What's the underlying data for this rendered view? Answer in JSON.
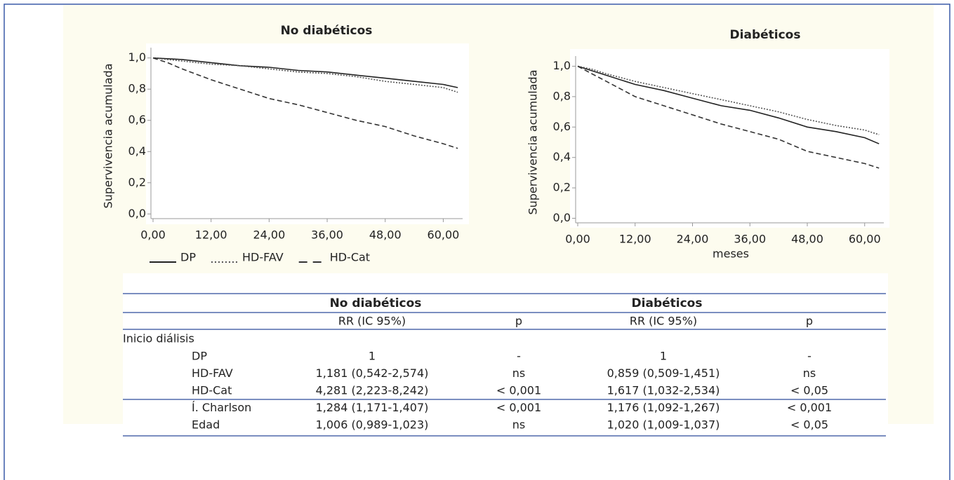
{
  "chart_data": [
    {
      "type": "line",
      "title": "No diabéticos",
      "ylabel": "Supervivencia acumulada",
      "x": [
        0,
        3,
        6,
        12,
        18,
        24,
        30,
        36,
        42,
        48,
        54,
        60,
        63
      ],
      "series": [
        {
          "name": "DP",
          "color": "#222222",
          "dash": "solid",
          "values": [
            1.0,
            0.995,
            0.99,
            0.97,
            0.95,
            0.94,
            0.92,
            0.91,
            0.89,
            0.87,
            0.85,
            0.83,
            0.81
          ]
        },
        {
          "name": "HD-FAV",
          "color": "#555555",
          "dash": "dotted",
          "values": [
            1.0,
            0.99,
            0.98,
            0.96,
            0.95,
            0.93,
            0.91,
            0.9,
            0.88,
            0.85,
            0.83,
            0.81,
            0.78
          ]
        },
        {
          "name": "HD-Cat",
          "color": "#333333",
          "dash": "dashed",
          "values": [
            1.0,
            0.97,
            0.93,
            0.86,
            0.8,
            0.74,
            0.7,
            0.65,
            0.6,
            0.56,
            0.5,
            0.45,
            0.42
          ]
        }
      ],
      "xlim": [
        0,
        64
      ],
      "ylim": [
        -0.03,
        1.03
      ],
      "xticks": [
        {
          "value": 0,
          "label": "0,00"
        },
        {
          "value": 12,
          "label": "12,00"
        },
        {
          "value": 24,
          "label": "24,00"
        },
        {
          "value": 36,
          "label": "36,00"
        },
        {
          "value": 48,
          "label": "48,00"
        },
        {
          "value": 60,
          "label": "60,00"
        }
      ],
      "yticks": [
        {
          "value": 0,
          "label": "0,0"
        },
        {
          "value": 0.2,
          "label": "0,2"
        },
        {
          "value": 0.4,
          "label": "0,4"
        },
        {
          "value": 0.6,
          "label": "0,6"
        },
        {
          "value": 0.8,
          "label": "0,8"
        },
        {
          "value": 1,
          "label": "1,0"
        }
      ],
      "legend": "bottom"
    },
    {
      "type": "line",
      "title": "Diabéticos",
      "ylabel": "Supervivencia acumulada",
      "xlabel": "meses",
      "x": [
        0,
        3,
        6,
        12,
        18,
        24,
        30,
        36,
        42,
        48,
        54,
        60,
        63
      ],
      "series": [
        {
          "name": "DP",
          "color": "#222222",
          "dash": "solid",
          "values": [
            1.0,
            0.97,
            0.94,
            0.88,
            0.84,
            0.79,
            0.74,
            0.71,
            0.66,
            0.6,
            0.57,
            0.53,
            0.49
          ]
        },
        {
          "name": "HD-FAV",
          "color": "#555555",
          "dash": "dotted",
          "values": [
            1.0,
            0.98,
            0.95,
            0.9,
            0.86,
            0.82,
            0.78,
            0.74,
            0.7,
            0.65,
            0.61,
            0.58,
            0.55
          ]
        },
        {
          "name": "HD-Cat",
          "color": "#333333",
          "dash": "dashed",
          "values": [
            1.0,
            0.95,
            0.9,
            0.8,
            0.74,
            0.68,
            0.62,
            0.57,
            0.52,
            0.44,
            0.4,
            0.36,
            0.33
          ]
        }
      ],
      "xlim": [
        0,
        64
      ],
      "ylim": [
        -0.03,
        1.03
      ],
      "xticks": [
        {
          "value": 0,
          "label": "0,00"
        },
        {
          "value": 12,
          "label": "12,00"
        },
        {
          "value": 24,
          "label": "24,00"
        },
        {
          "value": 36,
          "label": "36,00"
        },
        {
          "value": 48,
          "label": "48,00"
        },
        {
          "value": 60,
          "label": "60,00"
        }
      ],
      "yticks": [
        {
          "value": 0,
          "label": "0,0"
        },
        {
          "value": 0.2,
          "label": "0,2"
        },
        {
          "value": 0.4,
          "label": "0,4"
        },
        {
          "value": 0.6,
          "label": "0,6"
        },
        {
          "value": 0.8,
          "label": "0,8"
        },
        {
          "value": 1,
          "label": "1,0"
        }
      ]
    }
  ],
  "table": {
    "group_headers": [
      "No diabéticos",
      "Diabéticos"
    ],
    "sub_headers": [
      "RR (IC 95%)",
      "p",
      "RR (IC 95%)",
      "p"
    ],
    "section": "Inicio diálisis",
    "rows": [
      [
        "DP",
        "1",
        "-",
        "1",
        "-"
      ],
      [
        "HD-FAV",
        "1,181 (0,542-2,574)",
        "ns",
        "0,859 (0,509-1,451)",
        "ns"
      ],
      [
        "HD-Cat",
        "4,281 (2,223-8,242)",
        "< 0,001",
        "1,617 (1,032-2,534)",
        "< 0,05"
      ],
      [
        "Í. Charlson",
        "1,284 (1,171-1,407)",
        "< 0,001",
        "1,176 (1,092-1,267)",
        "< 0,001"
      ],
      [
        "Edad",
        "1,006 (0,989-1,023)",
        "ns",
        "1,020 (1,009-1,037)",
        "< 0,05"
      ]
    ]
  }
}
